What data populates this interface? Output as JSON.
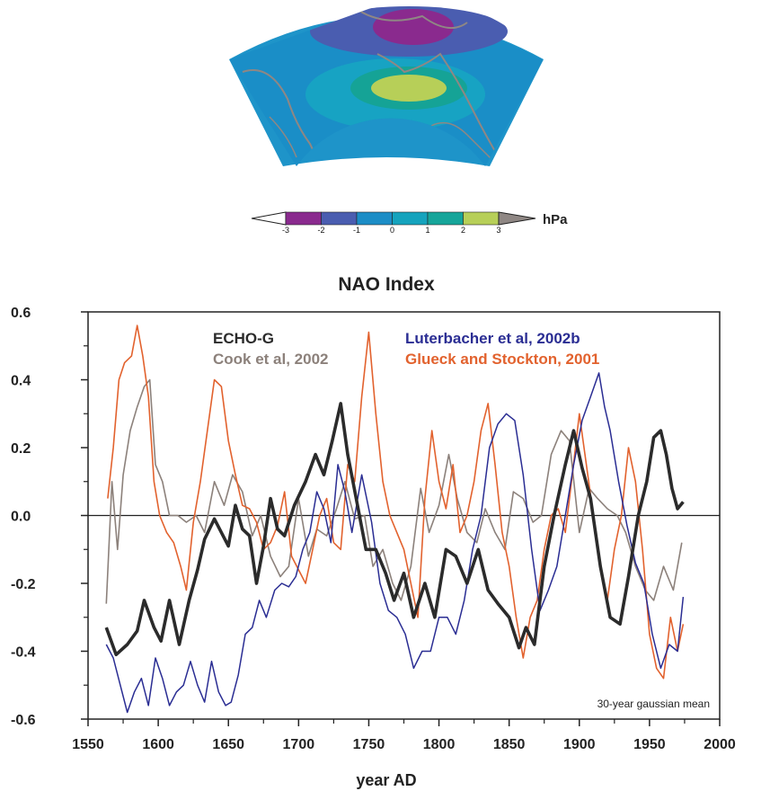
{
  "map": {
    "colorbar": {
      "ticks": [
        "-3",
        "-2",
        "-1",
        "0",
        "1",
        "2",
        "3"
      ],
      "unit": "hPa",
      "colors": [
        "#ffffff",
        "#8a2a8e",
        "#4a5db0",
        "#1c8dc6",
        "#15a3bd",
        "#16a59a",
        "#b7cf58",
        "#8f8784"
      ]
    }
  },
  "chart_data": {
    "type": "line",
    "title": "NAO Index",
    "xlabel": "year AD",
    "ylabel": "",
    "xlim": [
      1550,
      2000
    ],
    "ylim": [
      -0.6,
      0.6
    ],
    "xticks": [
      1550,
      1600,
      1650,
      1700,
      1750,
      1800,
      1850,
      1900,
      1950,
      2000
    ],
    "yticks": [
      "-0.6",
      "-0.4",
      "-0.2",
      "0.0",
      "0.2",
      "0.4",
      "0.6"
    ],
    "annotation": "30-year gaussian mean",
    "legend_placement": "top",
    "series": [
      {
        "name": "ECHO-G",
        "color": "#2b2b2b",
        "x": [
          1563,
          1570,
          1578,
          1585,
          1590,
          1597,
          1602,
          1608,
          1615,
          1622,
          1628,
          1633,
          1640,
          1645,
          1650,
          1655,
          1660,
          1665,
          1670,
          1675,
          1680,
          1685,
          1690,
          1697,
          1705,
          1712,
          1718,
          1724,
          1730,
          1735,
          1742,
          1748,
          1755,
          1762,
          1768,
          1775,
          1782,
          1790,
          1797,
          1805,
          1812,
          1820,
          1828,
          1835,
          1842,
          1850,
          1857,
          1862,
          1868,
          1875,
          1882,
          1890,
          1896,
          1902,
          1908,
          1915,
          1922,
          1929,
          1935,
          1942,
          1948,
          1953,
          1958,
          1962,
          1966,
          1970,
          1974
        ],
        "values": [
          -0.33,
          -0.41,
          -0.38,
          -0.34,
          -0.25,
          -0.33,
          -0.37,
          -0.25,
          -0.38,
          -0.25,
          -0.16,
          -0.07,
          -0.01,
          -0.05,
          -0.09,
          0.03,
          -0.04,
          -0.06,
          -0.2,
          -0.09,
          0.05,
          -0.04,
          -0.06,
          0.03,
          0.1,
          0.18,
          0.12,
          0.22,
          0.33,
          0.18,
          0.03,
          -0.1,
          -0.1,
          -0.17,
          -0.25,
          -0.17,
          -0.3,
          -0.2,
          -0.3,
          -0.1,
          -0.12,
          -0.2,
          -0.1,
          -0.22,
          -0.26,
          -0.3,
          -0.39,
          -0.33,
          -0.38,
          -0.15,
          0.0,
          0.15,
          0.25,
          0.14,
          0.05,
          -0.15,
          -0.3,
          -0.32,
          -0.18,
          0.0,
          0.1,
          0.23,
          0.25,
          0.18,
          0.08,
          0.02,
          0.04
        ]
      },
      {
        "name": "Cook et al, 2002",
        "color": "#8c817b",
        "x": [
          1563,
          1567,
          1571,
          1575,
          1580,
          1585,
          1590,
          1594,
          1598,
          1603,
          1608,
          1614,
          1620,
          1627,
          1633,
          1640,
          1647,
          1653,
          1660,
          1667,
          1673,
          1680,
          1687,
          1693,
          1700,
          1707,
          1713,
          1720,
          1727,
          1733,
          1740,
          1747,
          1753,
          1760,
          1767,
          1773,
          1780,
          1787,
          1793,
          1800,
          1807,
          1813,
          1820,
          1827,
          1833,
          1840,
          1847,
          1853,
          1860,
          1867,
          1873,
          1880,
          1887,
          1893,
          1900,
          1907,
          1913,
          1920,
          1927,
          1933,
          1940,
          1947,
          1953,
          1960,
          1967,
          1973
        ],
        "values": [
          -0.26,
          0.1,
          -0.1,
          0.12,
          0.25,
          0.32,
          0.38,
          0.4,
          0.15,
          0.1,
          0.0,
          0.0,
          -0.02,
          0.0,
          -0.05,
          0.1,
          0.03,
          0.12,
          0.07,
          -0.06,
          0.0,
          -0.12,
          -0.18,
          -0.15,
          0.05,
          -0.12,
          -0.04,
          -0.06,
          0.02,
          0.1,
          -0.01,
          0.0,
          -0.15,
          -0.1,
          -0.2,
          -0.25,
          -0.15,
          0.08,
          -0.05,
          0.03,
          0.18,
          0.05,
          -0.05,
          -0.08,
          0.02,
          -0.05,
          -0.1,
          0.07,
          0.05,
          -0.02,
          0.0,
          0.18,
          0.25,
          0.22,
          -0.05,
          0.08,
          0.05,
          0.02,
          0.0,
          -0.05,
          -0.15,
          -0.22,
          -0.25,
          -0.15,
          -0.22,
          -0.08
        ]
      },
      {
        "name": "Luterbacher et al, 2002b",
        "color": "#2a2d93",
        "x": [
          1563,
          1568,
          1573,
          1578,
          1583,
          1588,
          1593,
          1598,
          1603,
          1608,
          1613,
          1618,
          1623,
          1628,
          1633,
          1638,
          1643,
          1648,
          1652,
          1657,
          1662,
          1667,
          1672,
          1677,
          1683,
          1688,
          1693,
          1698,
          1703,
          1708,
          1713,
          1718,
          1723,
          1728,
          1733,
          1738,
          1745,
          1752,
          1758,
          1764,
          1770,
          1776,
          1782,
          1788,
          1794,
          1800,
          1806,
          1812,
          1818,
          1824,
          1830,
          1836,
          1842,
          1848,
          1854,
          1860,
          1866,
          1872,
          1878,
          1884,
          1890,
          1896,
          1902,
          1908,
          1914,
          1918,
          1922,
          1928,
          1934,
          1940,
          1946,
          1952,
          1958,
          1964,
          1970,
          1974
        ],
        "values": [
          -0.38,
          -0.42,
          -0.5,
          -0.58,
          -0.52,
          -0.48,
          -0.56,
          -0.42,
          -0.48,
          -0.56,
          -0.52,
          -0.5,
          -0.43,
          -0.5,
          -0.55,
          -0.43,
          -0.52,
          -0.56,
          -0.55,
          -0.47,
          -0.35,
          -0.33,
          -0.25,
          -0.3,
          -0.22,
          -0.2,
          -0.21,
          -0.18,
          -0.1,
          -0.05,
          0.07,
          0.02,
          -0.08,
          0.15,
          0.07,
          -0.05,
          0.12,
          -0.02,
          -0.2,
          -0.28,
          -0.3,
          -0.35,
          -0.45,
          -0.4,
          -0.4,
          -0.3,
          -0.3,
          -0.35,
          -0.25,
          -0.1,
          0.0,
          0.2,
          0.27,
          0.3,
          0.28,
          0.12,
          -0.1,
          -0.28,
          -0.22,
          -0.15,
          0.0,
          0.15,
          0.28,
          0.35,
          0.42,
          0.32,
          0.25,
          0.1,
          -0.03,
          -0.14,
          -0.2,
          -0.35,
          -0.45,
          -0.38,
          -0.4,
          -0.24
        ]
      },
      {
        "name": "Glueck and Stockton, 2001",
        "color": "#e2622e",
        "x": [
          1564,
          1568,
          1572,
          1576,
          1581,
          1585,
          1589,
          1593,
          1597,
          1601,
          1606,
          1611,
          1616,
          1620,
          1625,
          1630,
          1635,
          1640,
          1645,
          1650,
          1655,
          1660,
          1665,
          1670,
          1675,
          1680,
          1685,
          1690,
          1695,
          1700,
          1705,
          1710,
          1715,
          1720,
          1725,
          1730,
          1735,
          1740,
          1745,
          1750,
          1755,
          1760,
          1765,
          1770,
          1775,
          1780,
          1785,
          1790,
          1795,
          1800,
          1805,
          1810,
          1815,
          1820,
          1825,
          1830,
          1835,
          1840,
          1845,
          1850,
          1855,
          1860,
          1865,
          1870,
          1875,
          1880,
          1885,
          1890,
          1895,
          1900,
          1905,
          1910,
          1915,
          1920,
          1925,
          1930,
          1935,
          1940,
          1945,
          1950,
          1955,
          1960,
          1965,
          1970,
          1974
        ],
        "values": [
          0.05,
          0.2,
          0.4,
          0.45,
          0.47,
          0.56,
          0.47,
          0.35,
          0.1,
          0.0,
          -0.05,
          -0.08,
          -0.15,
          -0.22,
          -0.02,
          0.1,
          0.25,
          0.4,
          0.38,
          0.22,
          0.12,
          0.03,
          0.02,
          -0.02,
          -0.1,
          -0.08,
          -0.03,
          0.07,
          -0.12,
          -0.16,
          -0.2,
          -0.1,
          0.0,
          0.05,
          -0.08,
          -0.1,
          0.15,
          0.1,
          0.35,
          0.54,
          0.3,
          0.1,
          0.0,
          -0.05,
          -0.1,
          -0.2,
          -0.3,
          0.05,
          0.25,
          0.1,
          0.02,
          0.15,
          -0.05,
          0.0,
          0.1,
          0.25,
          0.33,
          0.15,
          -0.05,
          -0.15,
          -0.3,
          -0.42,
          -0.3,
          -0.25,
          -0.1,
          0.0,
          0.02,
          -0.05,
          0.12,
          0.3,
          0.15,
          0.0,
          -0.15,
          -0.25,
          -0.1,
          0.0,
          0.2,
          0.1,
          -0.1,
          -0.35,
          -0.45,
          -0.48,
          -0.3,
          -0.4,
          -0.32
        ]
      }
    ]
  }
}
